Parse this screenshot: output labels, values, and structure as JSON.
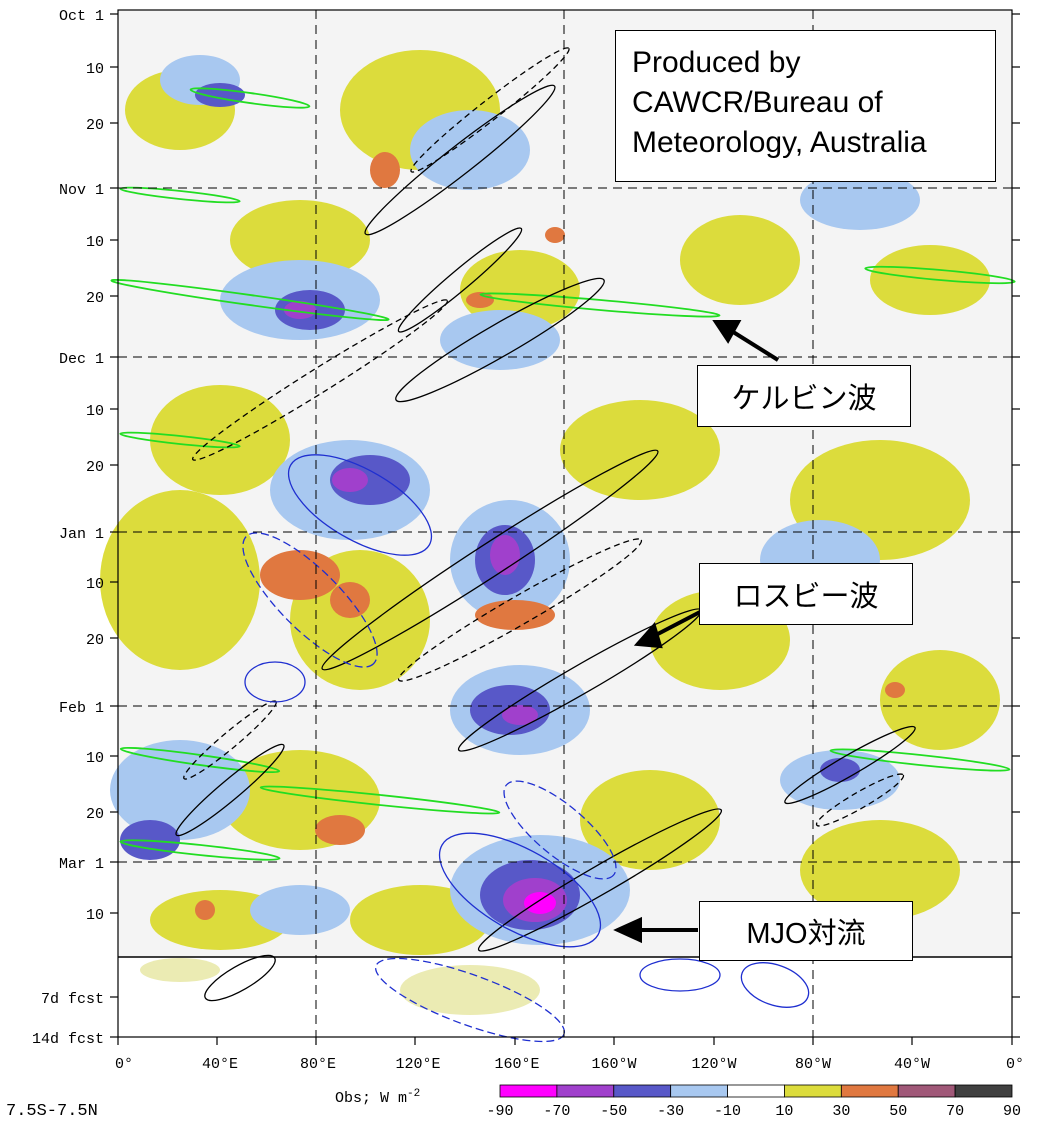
{
  "chart_data": {
    "type": "heatmap",
    "title": "",
    "region_label": "7.5S-7.5N",
    "colorbar_title": "Obs; W m",
    "colorbar_exponent": "-2",
    "colorbar": {
      "boundaries": [
        "-90",
        "-70",
        "-50",
        "-30",
        "-10",
        "10",
        "30",
        "50",
        "70",
        "90"
      ],
      "colors": [
        "#ff00ff",
        "#a040cc",
        "#5858c8",
        "#a8c8f0",
        "#ffffff",
        "#dcdc3c",
        "#e07840",
        "#a05878",
        "#404040"
      ]
    },
    "x_ticks": [
      "0°",
      "40°E",
      "80°E",
      "120°E",
      "160°E",
      "160°W",
      "120°W",
      "80°W",
      "40°W",
      "0°"
    ],
    "y_ticks": [
      "Oct 1",
      "10",
      "20",
      "Nov 1",
      "10",
      "20",
      "Dec 1",
      "10",
      "20",
      "Jan 1",
      "10",
      "20",
      "Feb 1",
      "10",
      "20",
      "Mar 1",
      "10"
    ],
    "forecast_ticks": [
      "7d fcst",
      "14d fcst"
    ],
    "x_range_degrees": [
      0,
      360
    ],
    "grid": "dashed at 80E, 180, 80W and at the first of each month",
    "field": "OLR anomaly, with Kelvin (green), Rossby (black) and MJO (blue) filtered contours"
  },
  "credit": {
    "line1": "Produced by",
    "line2": "CAWCR/Bureau of",
    "line3": "Meteorology, Australia"
  },
  "annotations": {
    "kelvin": "ケルビン波",
    "rossby": "ロスビー波",
    "mjo": "MJO対流"
  },
  "colors": {
    "kelvin_contour": "#22dd22",
    "rossby_contour": "#000000",
    "mjo_contour": "#1f2fd0"
  }
}
